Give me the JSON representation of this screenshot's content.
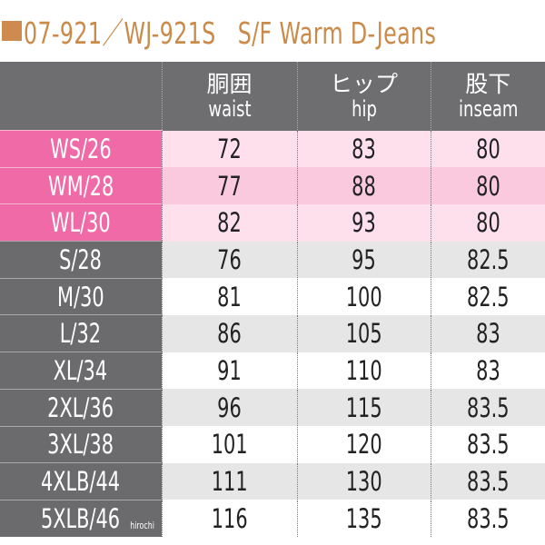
{
  "title": "07-921／WJ-921S　S/F Warm D-Jeans",
  "title_square_color": "#cf8b4f",
  "colors": {
    "header": "#6e6d6f",
    "pink_label": "#ef6aa6",
    "pink_row": "#fde0ec",
    "gray_row": "#e6e6e6"
  },
  "headers": [
    {
      "jp": "",
      "en": ""
    },
    {
      "jp": "胴囲",
      "en": "waist"
    },
    {
      "jp": "ヒップ",
      "en": "hip"
    },
    {
      "jp": "股下",
      "en": "inseam"
    }
  ],
  "rows": [
    {
      "size": "WS/26",
      "waist": "72",
      "hip": "83",
      "inseam": "80"
    },
    {
      "size": "WM/28",
      "waist": "77",
      "hip": "88",
      "inseam": "80"
    },
    {
      "size": "WL/30",
      "waist": "82",
      "hip": "93",
      "inseam": "80"
    },
    {
      "size": "S/28",
      "waist": "76",
      "hip": "95",
      "inseam": "82.5"
    },
    {
      "size": "M/30",
      "waist": "81",
      "hip": "100",
      "inseam": "82.5"
    },
    {
      "size": "L/32",
      "waist": "86",
      "hip": "105",
      "inseam": "83"
    },
    {
      "size": "XL/34",
      "waist": "91",
      "hip": "110",
      "inseam": "83"
    },
    {
      "size": "2XL/36",
      "waist": "96",
      "hip": "115",
      "inseam": "83.5"
    },
    {
      "size": "3XL/38",
      "waist": "101",
      "hip": "120",
      "inseam": "83.5"
    },
    {
      "size": "4XLB/44",
      "waist": "111",
      "hip": "130",
      "inseam": "83.5"
    },
    {
      "size": "5XLB/46",
      "waist": "116",
      "hip": "135",
      "inseam": "83.5"
    }
  ],
  "watermark": "hirochi"
}
